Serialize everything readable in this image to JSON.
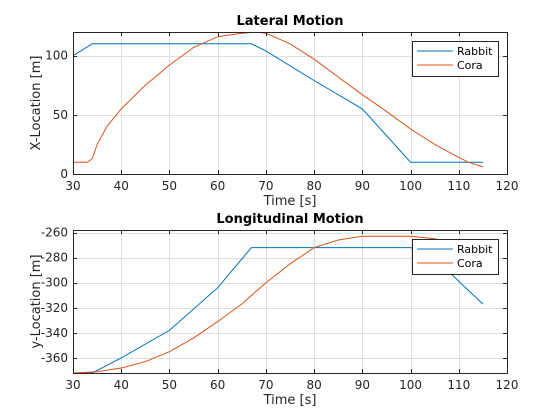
{
  "chart_data": [
    {
      "type": "line",
      "title": "Lateral Motion",
      "xlabel": "Time [s]",
      "ylabel": "X-Location [m]",
      "xlim": [
        30,
        120
      ],
      "ylim": [
        0,
        120
      ],
      "xticks": [
        30,
        40,
        50,
        60,
        70,
        80,
        90,
        100,
        110,
        120
      ],
      "yticks": [
        0,
        50,
        100
      ],
      "grid": true,
      "legend_position": "top-right",
      "series": [
        {
          "name": "Rabbit",
          "color": "#0072BD",
          "x": [
            30,
            34,
            40,
            50,
            60,
            67,
            70,
            80,
            90,
            100,
            105,
            110,
            115
          ],
          "y": [
            100,
            110,
            110,
            110,
            110,
            110,
            104,
            79,
            55,
            10,
            10,
            10,
            10
          ]
        },
        {
          "name": "Cora",
          "color": "#D95319",
          "x": [
            30,
            32,
            33,
            34,
            35,
            37,
            40,
            45,
            50,
            55,
            60,
            65,
            68,
            70,
            75,
            80,
            85,
            90,
            95,
            100,
            105,
            110,
            112,
            115
          ],
          "y": [
            10,
            10,
            10,
            13,
            25,
            40,
            55,
            75,
            92,
            107,
            116,
            119,
            120,
            119,
            110,
            97,
            82,
            67,
            53,
            38,
            25,
            14,
            10,
            6
          ]
        }
      ]
    },
    {
      "type": "line",
      "title": "Longitudinal Motion",
      "xlabel": "Time [s]",
      "ylabel": "y-Location [m]",
      "xlim": [
        30,
        120
      ],
      "ylim": [
        -372,
        -258
      ],
      "xticks": [
        30,
        40,
        50,
        60,
        70,
        80,
        90,
        100,
        110,
        120
      ],
      "yticks": [
        -360,
        -340,
        -320,
        -300,
        -280,
        -260
      ],
      "grid": true,
      "legend_position": "top-right",
      "series": [
        {
          "name": "Rabbit",
          "color": "#0072BD",
          "x": [
            30,
            34,
            40,
            50,
            60,
            67,
            70,
            80,
            90,
            100,
            105,
            110,
            115
          ],
          "y": [
            -372,
            -372,
            -360,
            -338,
            -304,
            -272,
            -272,
            -272,
            -272,
            -272,
            -280,
            -299,
            -317
          ]
        },
        {
          "name": "Cora",
          "color": "#D95319",
          "x": [
            30,
            35,
            40,
            45,
            50,
            55,
            60,
            65,
            70,
            75,
            80,
            85,
            90,
            95,
            100,
            105,
            110
          ],
          "y": [
            -372,
            -371,
            -368,
            -363,
            -355,
            -344,
            -331,
            -317,
            -300,
            -285,
            -272,
            -266,
            -263,
            -263,
            -263,
            -265,
            -269
          ]
        }
      ]
    }
  ]
}
